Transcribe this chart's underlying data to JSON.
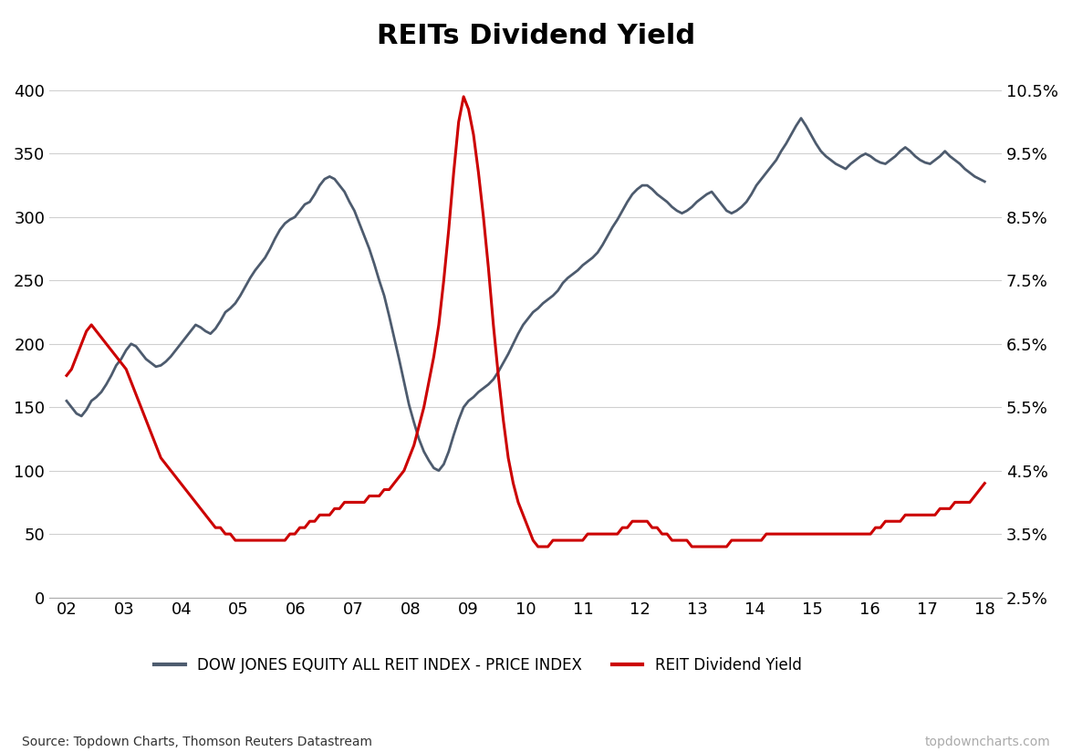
{
  "title": "REITs Dividend Yield",
  "title_fontsize": 22,
  "title_fontweight": "bold",
  "left_ylim": [
    0,
    400
  ],
  "right_ylim": [
    0.025,
    0.105
  ],
  "left_yticks": [
    0,
    50,
    100,
    150,
    200,
    250,
    300,
    350,
    400
  ],
  "right_ytick_vals": [
    0.025,
    0.035,
    0.045,
    0.055,
    0.065,
    0.075,
    0.085,
    0.095,
    0.105
  ],
  "right_ytick_labels": [
    "2.5%",
    "3.5%",
    "4.5%",
    "5.5%",
    "6.5%",
    "7.5%",
    "8.5%",
    "9.5%",
    "10.5%"
  ],
  "xtick_labels": [
    "02",
    "03",
    "04",
    "05",
    "06",
    "07",
    "08",
    "09",
    "10",
    "11",
    "12",
    "13",
    "14",
    "15",
    "16",
    "17",
    "18"
  ],
  "source_text": "Source: Topdown Charts, Thomson Reuters Datastream",
  "watermark_text": "topdowncharts.com",
  "legend1_label": "DOW JONES EQUITY ALL REIT INDEX - PRICE INDEX",
  "legend2_label": "REIT Dividend Yield",
  "dj_color": "#4d5b6e",
  "yield_color": "#cc0000",
  "background_color": "#ffffff",
  "dj_index": [
    155,
    150,
    145,
    143,
    148,
    155,
    158,
    162,
    168,
    175,
    183,
    188,
    195,
    200,
    198,
    193,
    188,
    185,
    182,
    183,
    186,
    190,
    195,
    200,
    205,
    210,
    215,
    213,
    210,
    208,
    212,
    218,
    225,
    228,
    232,
    238,
    245,
    252,
    258,
    263,
    268,
    275,
    283,
    290,
    295,
    298,
    300,
    305,
    310,
    312,
    318,
    325,
    330,
    332,
    330,
    325,
    320,
    312,
    305,
    295,
    285,
    275,
    263,
    250,
    238,
    222,
    205,
    188,
    170,
    152,
    138,
    125,
    115,
    108,
    102,
    100,
    105,
    115,
    128,
    140,
    150,
    155,
    158,
    162,
    165,
    168,
    172,
    178,
    185,
    192,
    200,
    208,
    215,
    220,
    225,
    228,
    232,
    235,
    238,
    242,
    248,
    252,
    255,
    258,
    262,
    265,
    268,
    272,
    278,
    285,
    292,
    298,
    305,
    312,
    318,
    322,
    325,
    325,
    322,
    318,
    315,
    312,
    308,
    305,
    303,
    305,
    308,
    312,
    315,
    318,
    320,
    315,
    310,
    305,
    303,
    305,
    308,
    312,
    318,
    325,
    330,
    335,
    340,
    345,
    352,
    358,
    365,
    372,
    378,
    372,
    365,
    358,
    352,
    348,
    345,
    342,
    340,
    338,
    342,
    345,
    348,
    350,
    348,
    345,
    343,
    342,
    345,
    348,
    352,
    355,
    352,
    348,
    345,
    343,
    342,
    345,
    348,
    352,
    348,
    345,
    342,
    338,
    335,
    332,
    330,
    328
  ],
  "div_yield": [
    0.06,
    0.061,
    0.063,
    0.065,
    0.067,
    0.068,
    0.067,
    0.066,
    0.065,
    0.064,
    0.063,
    0.062,
    0.061,
    0.059,
    0.057,
    0.055,
    0.053,
    0.051,
    0.049,
    0.047,
    0.046,
    0.045,
    0.044,
    0.043,
    0.042,
    0.041,
    0.04,
    0.039,
    0.038,
    0.037,
    0.036,
    0.036,
    0.035,
    0.035,
    0.034,
    0.034,
    0.034,
    0.034,
    0.034,
    0.034,
    0.034,
    0.034,
    0.034,
    0.034,
    0.034,
    0.035,
    0.035,
    0.036,
    0.036,
    0.037,
    0.037,
    0.038,
    0.038,
    0.038,
    0.039,
    0.039,
    0.04,
    0.04,
    0.04,
    0.04,
    0.04,
    0.041,
    0.041,
    0.041,
    0.042,
    0.042,
    0.043,
    0.044,
    0.045,
    0.047,
    0.049,
    0.052,
    0.055,
    0.059,
    0.063,
    0.068,
    0.075,
    0.083,
    0.092,
    0.1,
    0.104,
    0.102,
    0.098,
    0.092,
    0.085,
    0.077,
    0.068,
    0.06,
    0.053,
    0.047,
    0.043,
    0.04,
    0.038,
    0.036,
    0.034,
    0.033,
    0.033,
    0.033,
    0.034,
    0.034,
    0.034,
    0.034,
    0.034,
    0.034,
    0.034,
    0.035,
    0.035,
    0.035,
    0.035,
    0.035,
    0.035,
    0.035,
    0.036,
    0.036,
    0.037,
    0.037,
    0.037,
    0.037,
    0.036,
    0.036,
    0.035,
    0.035,
    0.034,
    0.034,
    0.034,
    0.034,
    0.033,
    0.033,
    0.033,
    0.033,
    0.033,
    0.033,
    0.033,
    0.033,
    0.034,
    0.034,
    0.034,
    0.034,
    0.034,
    0.034,
    0.034,
    0.035,
    0.035,
    0.035,
    0.035,
    0.035,
    0.035,
    0.035,
    0.035,
    0.035,
    0.035,
    0.035,
    0.035,
    0.035,
    0.035,
    0.035,
    0.035,
    0.035,
    0.035,
    0.035,
    0.035,
    0.035,
    0.035,
    0.036,
    0.036,
    0.037,
    0.037,
    0.037,
    0.037,
    0.038,
    0.038,
    0.038,
    0.038,
    0.038,
    0.038,
    0.038,
    0.039,
    0.039,
    0.039,
    0.04,
    0.04,
    0.04,
    0.04,
    0.041,
    0.042,
    0.043
  ]
}
